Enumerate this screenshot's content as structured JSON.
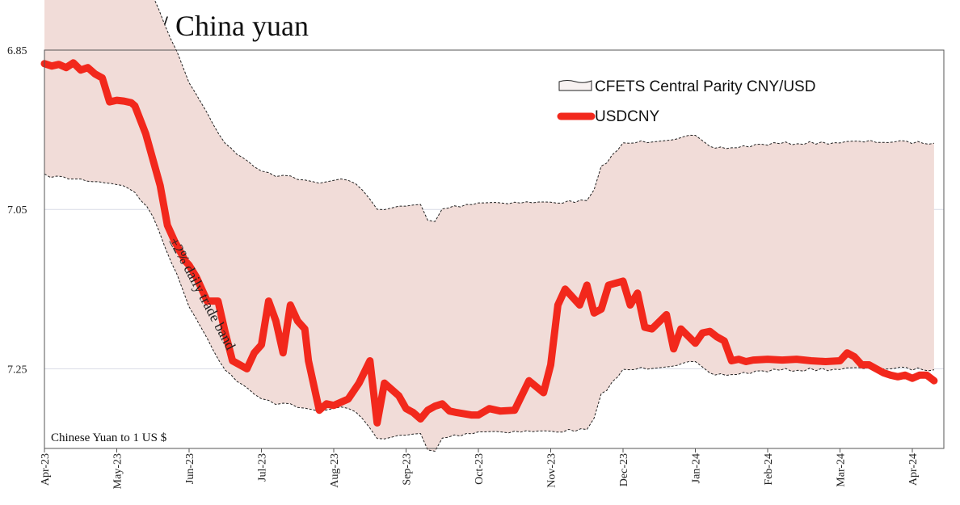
{
  "chart_data": {
    "type": "line",
    "title": "US$ / China yuan",
    "note": "Chinese Yuan to 1 US $",
    "annotation": "±2% daily trade band",
    "y_axis": {
      "inverted": true,
      "ylim": [
        6.85,
        7.35
      ],
      "ticks": [
        "6.85",
        "7.05",
        "7.25"
      ],
      "grid": true
    },
    "x_axis": {
      "ticks": [
        "Apr-23",
        "May-23",
        "Jun-23",
        "Jul-23",
        "Aug-23",
        "Sep-23",
        "Oct-23",
        "Nov-23",
        "Dec-23",
        "Jan-24",
        "Feb-24",
        "Mar-24",
        "Apr-24"
      ]
    },
    "legend": {
      "position": "top-right",
      "entries": [
        "CFETS Central Parity CNY/USD",
        "USDCNY"
      ]
    },
    "colors": {
      "usdcny": "#f2281c",
      "band_fill": "#f1dcd8",
      "band_edge": "#222222",
      "grid": "#d8dce6"
    },
    "series": [
      {
        "name": "USDCNY",
        "x_months": [
          0,
          0.1,
          0.2,
          0.3,
          0.4,
          0.5,
          0.6,
          0.7,
          0.8,
          0.9,
          1.0,
          1.1,
          1.2,
          1.25,
          1.4,
          1.6,
          1.7,
          1.8,
          1.95,
          2.0,
          2.1,
          2.25,
          2.4,
          2.5,
          2.6,
          2.8,
          2.9,
          3.0,
          3.1,
          3.2,
          3.3,
          3.4,
          3.5,
          3.6,
          3.65,
          3.8,
          3.9,
          4.0,
          4.2,
          4.35,
          4.5,
          4.6,
          4.7,
          4.9,
          5.0,
          5.1,
          5.2,
          5.3,
          5.4,
          5.5,
          5.6,
          5.7,
          5.9,
          6.0,
          6.15,
          6.3,
          6.5,
          6.7,
          6.9,
          7.0,
          7.1,
          7.2,
          7.3,
          7.4,
          7.5,
          7.6,
          7.7,
          7.8,
          8.0,
          8.1,
          8.2,
          8.3,
          8.4,
          8.6,
          8.7,
          8.8,
          9.0,
          9.1,
          9.2,
          9.3,
          9.4,
          9.5,
          9.6,
          9.7,
          9.8,
          10.0,
          10.2,
          10.4,
          10.6,
          10.8,
          11.0,
          11.1,
          11.2,
          11.3,
          11.4,
          11.5,
          11.6,
          11.7,
          11.8,
          11.9,
          12.0,
          12.1,
          12.2,
          12.3
        ],
        "values": [
          6.867,
          6.87,
          6.868,
          6.872,
          6.866,
          6.875,
          6.872,
          6.88,
          6.885,
          6.915,
          6.913,
          6.914,
          6.916,
          6.92,
          6.955,
          7.02,
          7.07,
          7.09,
          7.115,
          7.12,
          7.135,
          7.165,
          7.165,
          7.205,
          7.24,
          7.25,
          7.23,
          7.22,
          7.165,
          7.19,
          7.23,
          7.17,
          7.19,
          7.2,
          7.24,
          7.302,
          7.294,
          7.296,
          7.288,
          7.268,
          7.24,
          7.318,
          7.268,
          7.284,
          7.3,
          7.305,
          7.313,
          7.302,
          7.297,
          7.294,
          7.303,
          7.305,
          7.308,
          7.308,
          7.3,
          7.303,
          7.302,
          7.265,
          7.28,
          7.245,
          7.17,
          7.15,
          7.16,
          7.17,
          7.145,
          7.18,
          7.175,
          7.145,
          7.14,
          7.17,
          7.155,
          7.198,
          7.2,
          7.182,
          7.225,
          7.2,
          7.218,
          7.205,
          7.203,
          7.21,
          7.215,
          7.24,
          7.238,
          7.241,
          7.239,
          7.238,
          7.239,
          7.238,
          7.24,
          7.241,
          7.24,
          7.23,
          7.235,
          7.245,
          7.245,
          7.25,
          7.255,
          7.258,
          7.26,
          7.258,
          7.262,
          7.258,
          7.258,
          7.265
        ]
      },
      {
        "name": "CFETS Central Parity CNY/USD",
        "band": "±2%",
        "x_months": [
          0,
          1.0,
          1.25,
          1.5,
          2.0,
          2.5,
          2.9,
          3.0,
          3.2,
          3.4,
          3.6,
          3.8,
          4.0,
          4.2,
          4.4,
          4.6,
          4.8,
          5.0,
          5.2,
          5.3,
          5.4,
          5.5,
          6.0,
          7.0,
          7.5,
          7.6,
          7.7,
          8.0,
          8.5,
          9.0,
          9.2,
          9.5,
          10.0,
          11.0,
          11.5,
          12.0,
          12.3
        ],
        "values": [
          6.87,
          6.88,
          6.89,
          6.92,
          7.03,
          7.11,
          7.14,
          7.145,
          7.15,
          7.15,
          7.158,
          7.16,
          7.157,
          7.155,
          7.17,
          7.193,
          7.192,
          7.19,
          7.188,
          7.208,
          7.21,
          7.193,
          7.185,
          7.185,
          7.183,
          7.17,
          7.14,
          7.11,
          7.105,
          7.1,
          7.115,
          7.115,
          7.11,
          7.108,
          7.107,
          7.108,
          7.109
        ]
      }
    ]
  }
}
